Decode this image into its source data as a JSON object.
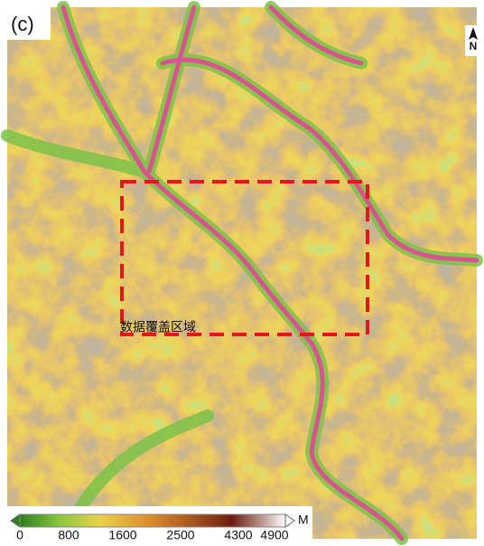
{
  "panel_label": "(c)",
  "north": "N",
  "region_label": "数据覆盖区域",
  "legend": {
    "ticks": [
      0,
      800,
      1600,
      2500,
      4300,
      4900
    ],
    "unit": "M"
  }
}
